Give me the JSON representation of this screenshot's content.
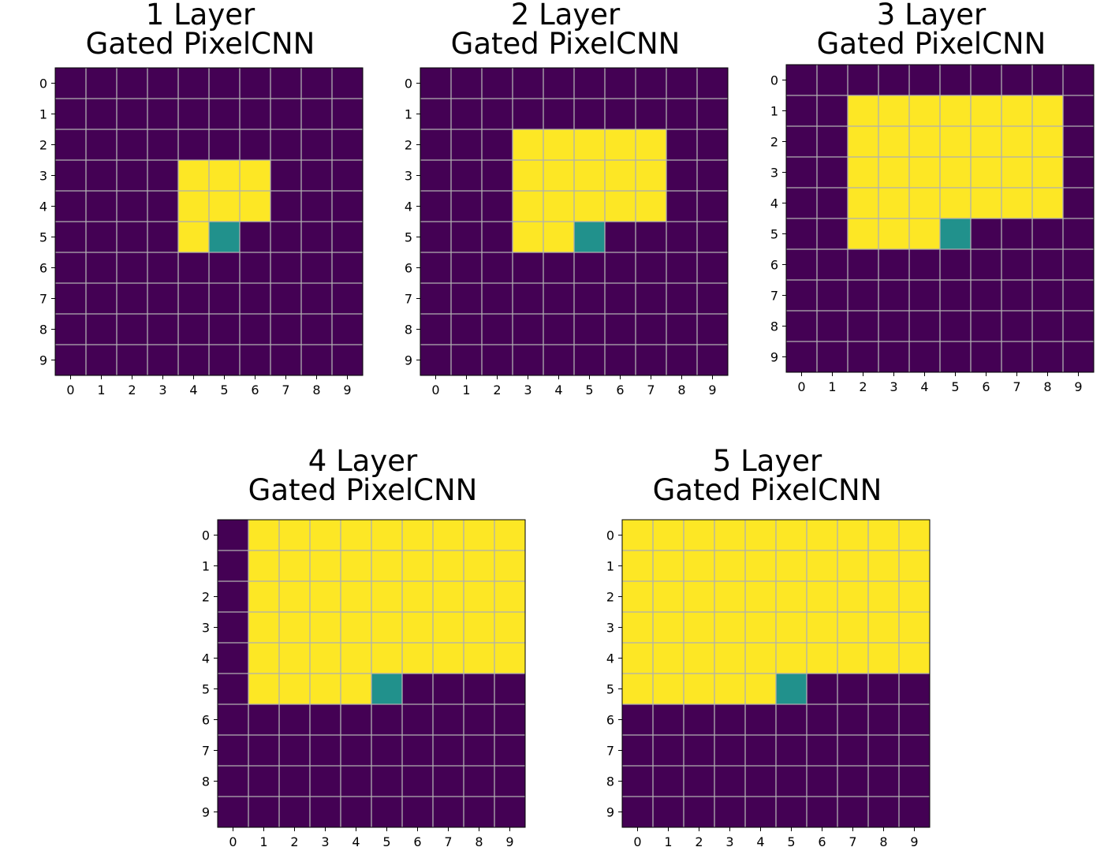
{
  "colors": {
    "outside": "#440154",
    "receptive_field": "#fde725",
    "target_pixel": "#21918c",
    "grid_line": "#b0b0b0",
    "background": "#ffffff"
  },
  "chart_data": [
    {
      "type": "heatmap",
      "title": [
        "1 Layer",
        "Gated PixelCNN"
      ],
      "x_ticks": [
        "0",
        "1",
        "2",
        "3",
        "4",
        "5",
        "6",
        "7",
        "8",
        "9"
      ],
      "y_ticks": [
        "0",
        "1",
        "2",
        "3",
        "4",
        "5",
        "6",
        "7",
        "8",
        "9"
      ],
      "grid": true,
      "target_pixel": [
        5,
        5
      ],
      "values": [
        [
          0,
          0,
          0,
          0,
          0,
          0,
          0,
          0,
          0,
          0
        ],
        [
          0,
          0,
          0,
          0,
          0,
          0,
          0,
          0,
          0,
          0
        ],
        [
          0,
          0,
          0,
          0,
          0,
          0,
          0,
          0,
          0,
          0
        ],
        [
          0,
          0,
          0,
          0,
          1,
          1,
          1,
          0,
          0,
          0
        ],
        [
          0,
          0,
          0,
          0,
          1,
          1,
          1,
          0,
          0,
          0
        ],
        [
          0,
          0,
          0,
          0,
          1,
          0.5,
          0,
          0,
          0,
          0
        ],
        [
          0,
          0,
          0,
          0,
          0,
          0,
          0,
          0,
          0,
          0
        ],
        [
          0,
          0,
          0,
          0,
          0,
          0,
          0,
          0,
          0,
          0
        ],
        [
          0,
          0,
          0,
          0,
          0,
          0,
          0,
          0,
          0,
          0
        ],
        [
          0,
          0,
          0,
          0,
          0,
          0,
          0,
          0,
          0,
          0
        ]
      ]
    },
    {
      "type": "heatmap",
      "title": [
        "2 Layer",
        "Gated PixelCNN"
      ],
      "x_ticks": [
        "0",
        "1",
        "2",
        "3",
        "4",
        "5",
        "6",
        "7",
        "8",
        "9"
      ],
      "y_ticks": [
        "0",
        "1",
        "2",
        "3",
        "4",
        "5",
        "6",
        "7",
        "8",
        "9"
      ],
      "grid": true,
      "target_pixel": [
        5,
        5
      ],
      "values": [
        [
          0,
          0,
          0,
          0,
          0,
          0,
          0,
          0,
          0,
          0
        ],
        [
          0,
          0,
          0,
          0,
          0,
          0,
          0,
          0,
          0,
          0
        ],
        [
          0,
          0,
          0,
          1,
          1,
          1,
          1,
          1,
          0,
          0
        ],
        [
          0,
          0,
          0,
          1,
          1,
          1,
          1,
          1,
          0,
          0
        ],
        [
          0,
          0,
          0,
          1,
          1,
          1,
          1,
          1,
          0,
          0
        ],
        [
          0,
          0,
          0,
          1,
          1,
          0.5,
          0,
          0,
          0,
          0
        ],
        [
          0,
          0,
          0,
          0,
          0,
          0,
          0,
          0,
          0,
          0
        ],
        [
          0,
          0,
          0,
          0,
          0,
          0,
          0,
          0,
          0,
          0
        ],
        [
          0,
          0,
          0,
          0,
          0,
          0,
          0,
          0,
          0,
          0
        ],
        [
          0,
          0,
          0,
          0,
          0,
          0,
          0,
          0,
          0,
          0
        ]
      ]
    },
    {
      "type": "heatmap",
      "title": [
        "3 Layer",
        "Gated PixelCNN"
      ],
      "x_ticks": [
        "0",
        "1",
        "2",
        "3",
        "4",
        "5",
        "6",
        "7",
        "8",
        "9"
      ],
      "y_ticks": [
        "0",
        "1",
        "2",
        "3",
        "4",
        "5",
        "6",
        "7",
        "8",
        "9"
      ],
      "grid": true,
      "target_pixel": [
        5,
        5
      ],
      "values": [
        [
          0,
          0,
          0,
          0,
          0,
          0,
          0,
          0,
          0,
          0
        ],
        [
          0,
          0,
          1,
          1,
          1,
          1,
          1,
          1,
          1,
          0
        ],
        [
          0,
          0,
          1,
          1,
          1,
          1,
          1,
          1,
          1,
          0
        ],
        [
          0,
          0,
          1,
          1,
          1,
          1,
          1,
          1,
          1,
          0
        ],
        [
          0,
          0,
          1,
          1,
          1,
          1,
          1,
          1,
          1,
          0
        ],
        [
          0,
          0,
          1,
          1,
          1,
          0.5,
          0,
          0,
          0,
          0
        ],
        [
          0,
          0,
          0,
          0,
          0,
          0,
          0,
          0,
          0,
          0
        ],
        [
          0,
          0,
          0,
          0,
          0,
          0,
          0,
          0,
          0,
          0
        ],
        [
          0,
          0,
          0,
          0,
          0,
          0,
          0,
          0,
          0,
          0
        ],
        [
          0,
          0,
          0,
          0,
          0,
          0,
          0,
          0,
          0,
          0
        ]
      ]
    },
    {
      "type": "heatmap",
      "title": [
        "4 Layer",
        "Gated PixelCNN"
      ],
      "x_ticks": [
        "0",
        "1",
        "2",
        "3",
        "4",
        "5",
        "6",
        "7",
        "8",
        "9"
      ],
      "y_ticks": [
        "0",
        "1",
        "2",
        "3",
        "4",
        "5",
        "6",
        "7",
        "8",
        "9"
      ],
      "grid": true,
      "target_pixel": [
        5,
        5
      ],
      "values": [
        [
          0,
          1,
          1,
          1,
          1,
          1,
          1,
          1,
          1,
          1
        ],
        [
          0,
          1,
          1,
          1,
          1,
          1,
          1,
          1,
          1,
          1
        ],
        [
          0,
          1,
          1,
          1,
          1,
          1,
          1,
          1,
          1,
          1
        ],
        [
          0,
          1,
          1,
          1,
          1,
          1,
          1,
          1,
          1,
          1
        ],
        [
          0,
          1,
          1,
          1,
          1,
          1,
          1,
          1,
          1,
          1
        ],
        [
          0,
          1,
          1,
          1,
          1,
          0.5,
          0,
          0,
          0,
          0
        ],
        [
          0,
          0,
          0,
          0,
          0,
          0,
          0,
          0,
          0,
          0
        ],
        [
          0,
          0,
          0,
          0,
          0,
          0,
          0,
          0,
          0,
          0
        ],
        [
          0,
          0,
          0,
          0,
          0,
          0,
          0,
          0,
          0,
          0
        ],
        [
          0,
          0,
          0,
          0,
          0,
          0,
          0,
          0,
          0,
          0
        ]
      ]
    },
    {
      "type": "heatmap",
      "title": [
        "5 Layer",
        "Gated PixelCNN"
      ],
      "x_ticks": [
        "0",
        "1",
        "2",
        "3",
        "4",
        "5",
        "6",
        "7",
        "8",
        "9"
      ],
      "y_ticks": [
        "0",
        "1",
        "2",
        "3",
        "4",
        "5",
        "6",
        "7",
        "8",
        "9"
      ],
      "grid": true,
      "target_pixel": [
        5,
        5
      ],
      "values": [
        [
          1,
          1,
          1,
          1,
          1,
          1,
          1,
          1,
          1,
          1
        ],
        [
          1,
          1,
          1,
          1,
          1,
          1,
          1,
          1,
          1,
          1
        ],
        [
          1,
          1,
          1,
          1,
          1,
          1,
          1,
          1,
          1,
          1
        ],
        [
          1,
          1,
          1,
          1,
          1,
          1,
          1,
          1,
          1,
          1
        ],
        [
          1,
          1,
          1,
          1,
          1,
          1,
          1,
          1,
          1,
          1
        ],
        [
          1,
          1,
          1,
          1,
          1,
          0.5,
          0,
          0,
          0,
          0
        ],
        [
          0,
          0,
          0,
          0,
          0,
          0,
          0,
          0,
          0,
          0
        ],
        [
          0,
          0,
          0,
          0,
          0,
          0,
          0,
          0,
          0,
          0
        ],
        [
          0,
          0,
          0,
          0,
          0,
          0,
          0,
          0,
          0,
          0
        ],
        [
          0,
          0,
          0,
          0,
          0,
          0,
          0,
          0,
          0,
          0
        ]
      ]
    }
  ]
}
